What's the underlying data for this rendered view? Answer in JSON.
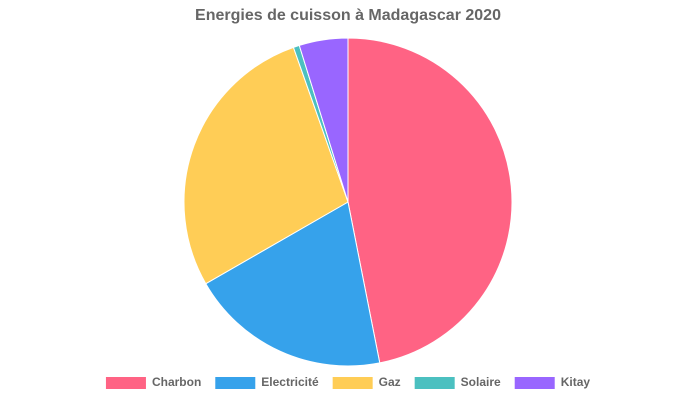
{
  "chart_data": {
    "type": "pie",
    "title": "Energies de cuisson à Madagascar 2020",
    "categories": [
      "Charbon",
      "Electricité",
      "Gaz",
      "Solaire",
      "Kitay"
    ],
    "values": [
      46.9,
      19.8,
      27.9,
      0.6,
      4.8
    ],
    "colors": [
      "#ff6384",
      "#36a2eb",
      "#ffcd56",
      "#4bc0c0",
      "#9966ff"
    ],
    "legend": "bottom"
  }
}
